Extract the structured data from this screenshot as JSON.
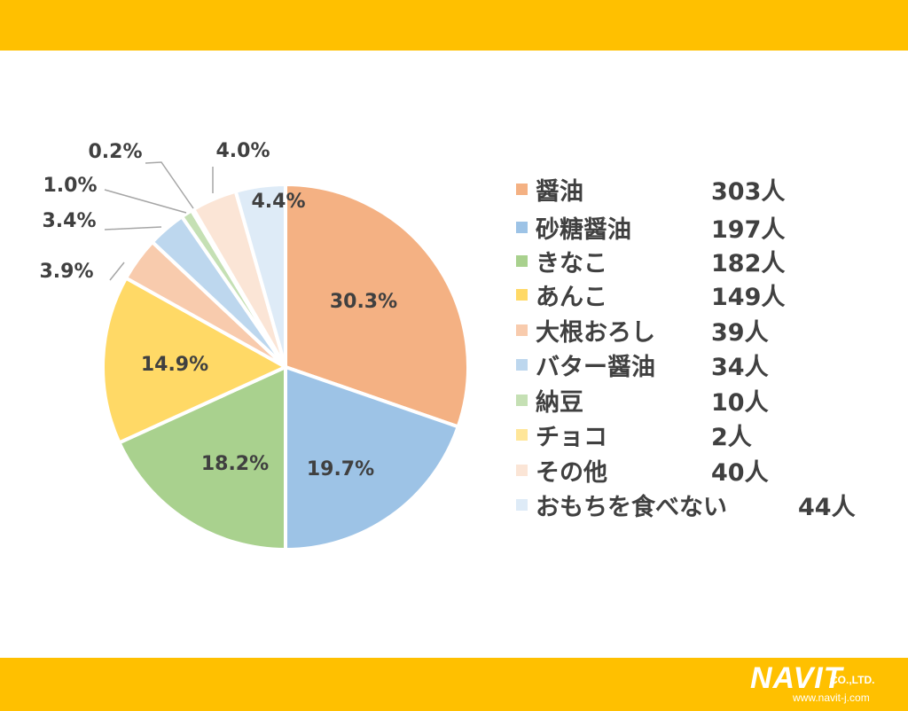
{
  "chart_data": {
    "type": "pie",
    "slices": [
      {
        "label": "醤油",
        "count": "303人",
        "percent": 30.3,
        "percent_label": "30.3%",
        "color": "#F4B183"
      },
      {
        "label": "砂糖醤油",
        "count": "197人",
        "percent": 19.7,
        "percent_label": "19.7%",
        "color": "#9DC3E6"
      },
      {
        "label": "きなこ",
        "count": "182人",
        "percent": 18.2,
        "percent_label": "18.2%",
        "color": "#A9D18E"
      },
      {
        "label": "あんこ",
        "count": "149人",
        "percent": 14.9,
        "percent_label": "14.9%",
        "color": "#FFD966"
      },
      {
        "label": "大根おろし",
        "count": "39人",
        "percent": 3.9,
        "percent_label": "3.9%",
        "color": "#F8CBAD"
      },
      {
        "label": "バター醤油",
        "count": "34人",
        "percent": 3.4,
        "percent_label": "3.4%",
        "color": "#BDD7EE"
      },
      {
        "label": "納豆",
        "count": "10人",
        "percent": 1.0,
        "percent_label": "1.0%",
        "color": "#C5E0B4"
      },
      {
        "label": "チョコ",
        "count": "2人",
        "percent": 0.2,
        "percent_label": "0.2%",
        "color": "#FFE699"
      },
      {
        "label": "その他",
        "count": "40人",
        "percent": 4.0,
        "percent_label": "4.0%",
        "color": "#FBE5D6"
      },
      {
        "label": "おもちを食べない",
        "count": "44人",
        "percent": 4.4,
        "percent_label": "4.4%",
        "color": "#DEEBF7"
      }
    ],
    "legend_position": "right"
  },
  "branding": {
    "logo_text": "NAVIT",
    "logo_suffix": "CO.,LTD.",
    "url": "www.navit-j.com"
  },
  "colors": {
    "band": "#FFC000",
    "text": "#404040",
    "leader_line": "#A6A6A6"
  }
}
